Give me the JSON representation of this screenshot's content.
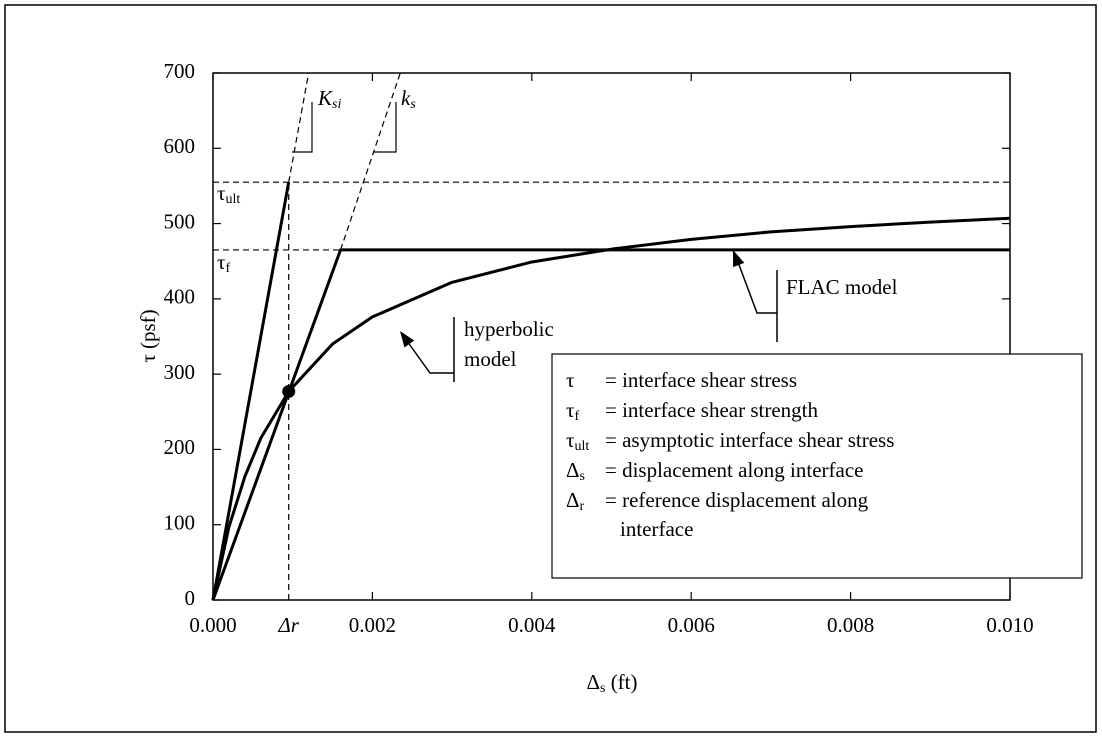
{
  "chart_data": {
    "type": "line",
    "xlabel": [
      "Δ",
      "s",
      " (ft)"
    ],
    "ylabel": "τ (psf)",
    "xlim": [
      0,
      0.01
    ],
    "ylim": [
      0,
      700
    ],
    "xticks": [
      {
        "value": 0,
        "label": "0.000"
      },
      {
        "value": 0.002,
        "label": "0.002"
      },
      {
        "value": 0.004,
        "label": "0.004"
      },
      {
        "value": 0.006,
        "label": "0.006"
      },
      {
        "value": 0.008,
        "label": "0.008"
      },
      {
        "value": 0.01,
        "label": "0.010"
      }
    ],
    "yticks": [
      0,
      100,
      200,
      300,
      400,
      500,
      600,
      700
    ],
    "series": [
      {
        "name": "hyperbolic model",
        "color": "#000000",
        "width": 3,
        "dashed": false,
        "x": [
          0,
          0.0002,
          0.0004,
          0.0006,
          0.00095,
          0.0015,
          0.002,
          0.003,
          0.004,
          0.005,
          0.006,
          0.007,
          0.008,
          0.009,
          0.01
        ],
        "values": [
          0,
          97,
          164,
          215,
          277,
          340,
          376,
          422,
          449,
          466,
          479,
          489,
          496,
          502,
          507
        ]
      },
      {
        "name": "FLAC model",
        "color": "#000000",
        "width": 3,
        "dashed": false,
        "x": [
          0,
          0.0016,
          0.01
        ],
        "values": [
          0,
          465,
          465
        ]
      },
      {
        "color": "#000000",
        "width": 3,
        "dashed": false,
        "x": [
          0,
          0.00095
        ],
        "values": [
          0,
          555
        ]
      },
      {
        "color": "#000000",
        "width": 1.2,
        "dashed": true,
        "x": [
          0.00095,
          0.0012
        ],
        "values": [
          555,
          700
        ]
      },
      {
        "color": "#000000",
        "width": 1.2,
        "dashed": true,
        "x": [
          0.0016,
          0.00235
        ],
        "values": [
          465,
          700
        ]
      },
      {
        "color": "#000000",
        "width": 1.2,
        "dashed": true,
        "x": [
          0,
          0.01
        ],
        "values": [
          555,
          555
        ]
      },
      {
        "color": "#000000",
        "width": 1.2,
        "dashed": true,
        "x": [
          0,
          0.01
        ],
        "values": [
          465,
          465
        ]
      },
      {
        "color": "#000000",
        "width": 1.2,
        "dashed": true,
        "x": [
          0.00095,
          0.00095
        ],
        "values": [
          0,
          555
        ]
      }
    ],
    "marker": {
      "x": 0.00095,
      "value": 277
    },
    "annotations": {
      "tau_ult": [
        "τ",
        "ult"
      ],
      "tau_f": [
        "τ",
        "f"
      ],
      "delta_r": "Δr",
      "k_si": [
        "K",
        "si"
      ],
      "k_s": [
        "k",
        "s"
      ]
    },
    "definitions": [
      {
        "symbol": [
          "τ",
          ""
        ],
        "text": [
          "= interface shear stress"
        ]
      },
      {
        "symbol": [
          "τ",
          "f"
        ],
        "text": [
          "= interface shear strength"
        ]
      },
      {
        "symbol": [
          "τ",
          "ult"
        ],
        "text": [
          "= asymptotic interface shear stress"
        ]
      },
      {
        "symbol": [
          "Δ",
          "s"
        ],
        "text": [
          "= displacement along interface"
        ]
      },
      {
        "symbol": [
          "Δ",
          "r"
        ],
        "text": [
          "= reference displacement along",
          "interface"
        ]
      }
    ]
  }
}
